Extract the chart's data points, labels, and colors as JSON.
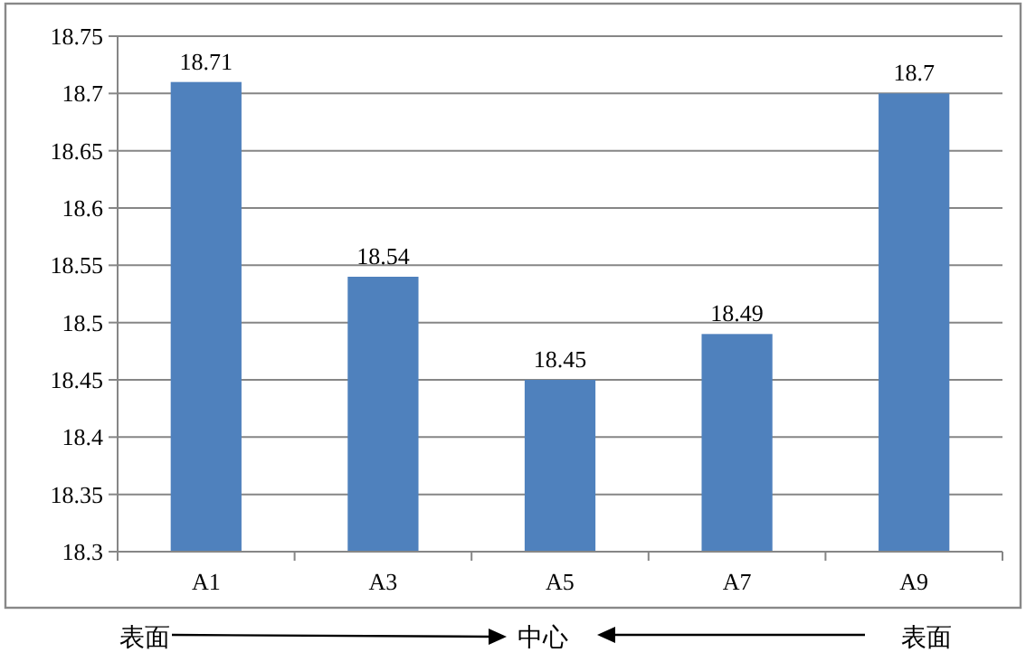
{
  "chart_data": {
    "type": "bar",
    "categories": [
      "A1",
      "A3",
      "A5",
      "A7",
      "A9"
    ],
    "values": [
      18.71,
      18.54,
      18.45,
      18.49,
      18.7
    ],
    "color": "#4f81bd",
    "ylim": [
      18.3,
      18.75
    ],
    "yticks": [
      18.3,
      18.35,
      18.4,
      18.45,
      18.5,
      18.55,
      18.6,
      18.65,
      18.7,
      18.75
    ],
    "grid": "y",
    "data_labels": true,
    "annotations": [
      "表面",
      "中心",
      "表面"
    ]
  }
}
